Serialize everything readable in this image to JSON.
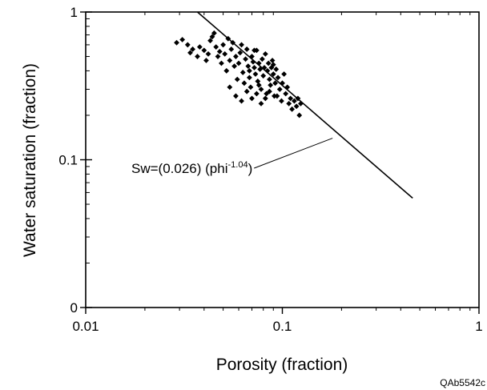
{
  "chart_data": {
    "type": "scatter",
    "title": "",
    "xlabel": "Porosity (fraction)",
    "ylabel": "Water saturation (fraction)",
    "xscale": "log",
    "yscale": "log",
    "xlim": [
      0.01,
      1
    ],
    "ylim": [
      0.01,
      1
    ],
    "x_ticks": [
      0.01,
      0.1,
      1
    ],
    "x_tick_labels": [
      "0.01",
      "0.1",
      "1"
    ],
    "y_ticks": [
      0.01,
      0.1,
      1
    ],
    "y_tick_labels": [
      "0",
      "0.1",
      "1"
    ],
    "grid": false,
    "legend": "none",
    "series": [
      {
        "kind": "points",
        "marker": "diamond",
        "color": "#000000",
        "points": [
          [
            0.029,
            0.62
          ],
          [
            0.031,
            0.65
          ],
          [
            0.033,
            0.6
          ],
          [
            0.034,
            0.53
          ],
          [
            0.035,
            0.56
          ],
          [
            0.037,
            0.5
          ],
          [
            0.038,
            0.58
          ],
          [
            0.04,
            0.55
          ],
          [
            0.041,
            0.47
          ],
          [
            0.042,
            0.52
          ],
          [
            0.043,
            0.64
          ],
          [
            0.044,
            0.68
          ],
          [
            0.045,
            0.72
          ],
          [
            0.046,
            0.58
          ],
          [
            0.047,
            0.5
          ],
          [
            0.048,
            0.54
          ],
          [
            0.049,
            0.45
          ],
          [
            0.05,
            0.6
          ],
          [
            0.051,
            0.52
          ],
          [
            0.052,
            0.4
          ],
          [
            0.053,
            0.66
          ],
          [
            0.054,
            0.47
          ],
          [
            0.055,
            0.56
          ],
          [
            0.056,
            0.62
          ],
          [
            0.057,
            0.43
          ],
          [
            0.058,
            0.5
          ],
          [
            0.059,
            0.35
          ],
          [
            0.06,
            0.45
          ],
          [
            0.061,
            0.53
          ],
          [
            0.062,
            0.6
          ],
          [
            0.063,
            0.39
          ],
          [
            0.064,
            0.33
          ],
          [
            0.065,
            0.48
          ],
          [
            0.066,
            0.56
          ],
          [
            0.067,
            0.43
          ],
          [
            0.068,
            0.36
          ],
          [
            0.069,
            0.31
          ],
          [
            0.07,
            0.5
          ],
          [
            0.071,
            0.46
          ],
          [
            0.072,
            0.42
          ],
          [
            0.073,
            0.38
          ],
          [
            0.074,
            0.55
          ],
          [
            0.075,
            0.34
          ],
          [
            0.076,
            0.45
          ],
          [
            0.077,
            0.41
          ],
          [
            0.078,
            0.3
          ],
          [
            0.079,
            0.48
          ],
          [
            0.08,
            0.37
          ],
          [
            0.081,
            0.42
          ],
          [
            0.082,
            0.52
          ],
          [
            0.083,
            0.28
          ],
          [
            0.084,
            0.4
          ],
          [
            0.085,
            0.45
          ],
          [
            0.086,
            0.35
          ],
          [
            0.087,
            0.32
          ],
          [
            0.088,
            0.42
          ],
          [
            0.089,
            0.47
          ],
          [
            0.09,
            0.38
          ],
          [
            0.091,
            0.27
          ],
          [
            0.092,
            0.33
          ],
          [
            0.093,
            0.41
          ],
          [
            0.095,
            0.36
          ],
          [
            0.097,
            0.3
          ],
          [
            0.099,
            0.25
          ],
          [
            0.1,
            0.33
          ],
          [
            0.102,
            0.38
          ],
          [
            0.104,
            0.28
          ],
          [
            0.106,
            0.31
          ],
          [
            0.108,
            0.24
          ],
          [
            0.11,
            0.26
          ],
          [
            0.112,
            0.22
          ],
          [
            0.115,
            0.25
          ],
          [
            0.118,
            0.23
          ],
          [
            0.12,
            0.26
          ],
          [
            0.122,
            0.2
          ],
          [
            0.124,
            0.24
          ],
          [
            0.058,
            0.27
          ],
          [
            0.062,
            0.25
          ],
          [
            0.066,
            0.29
          ],
          [
            0.07,
            0.26
          ],
          [
            0.074,
            0.28
          ],
          [
            0.078,
            0.24
          ],
          [
            0.082,
            0.26
          ],
          [
            0.054,
            0.31
          ],
          [
            0.076,
            0.32
          ],
          [
            0.086,
            0.29
          ],
          [
            0.094,
            0.27
          ],
          [
            0.09,
            0.44
          ],
          [
            0.072,
            0.55
          ],
          [
            0.068,
            0.4
          ]
        ]
      },
      {
        "kind": "line",
        "color": "#000000",
        "x": [
          0.037,
          0.46
        ],
        "y": [
          1.0,
          0.055
        ]
      }
    ],
    "annotations": [
      {
        "text_main": "Sw=(0.026) (phi",
        "text_sup": "-1.04",
        "text_close": ")",
        "points_to": [
          0.18,
          0.14
        ]
      }
    ]
  },
  "figure_id": "QAb5542c"
}
